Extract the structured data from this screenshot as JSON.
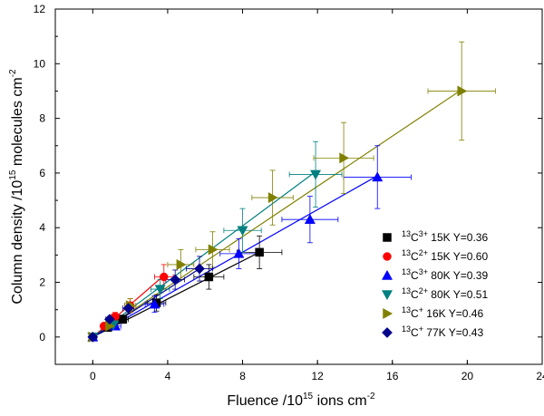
{
  "chart_data": {
    "type": "scatter",
    "xlabel": "Fluence /10",
    "xlabel_exp": "15",
    "xlabel_tail": " ions cm",
    "xlabel_tail_exp": "-2",
    "ylabel": "Column density /10",
    "ylabel_exp": "15",
    "ylabel_tail": " molecules cm",
    "ylabel_tail_exp": "-2",
    "xlim": [
      -2,
      24
    ],
    "ylim": [
      -1,
      12
    ],
    "xticks": [
      0,
      4,
      8,
      12,
      16,
      20,
      24
    ],
    "yticks": [
      0,
      2,
      4,
      6,
      8,
      10,
      12
    ],
    "legend_position": "bottom-right",
    "series": [
      {
        "iso": "13",
        "ion": "C",
        "charge": "3+",
        "tail": " 15K Y=0.36",
        "marker": "square",
        "color": "#000000",
        "points": [
          {
            "x": 0,
            "y": 0,
            "xerr": 0,
            "yerr": 0
          },
          {
            "x": 0.8,
            "y": 0.35,
            "xerr": 0.2,
            "yerr": 0.1
          },
          {
            "x": 1.6,
            "y": 0.65,
            "xerr": 0.3,
            "yerr": 0.15
          },
          {
            "x": 3.4,
            "y": 1.25,
            "xerr": 0.5,
            "yerr": 0.3
          },
          {
            "x": 6.2,
            "y": 2.2,
            "xerr": 0.8,
            "yerr": 0.45
          },
          {
            "x": 8.9,
            "y": 3.1,
            "xerr": 1.2,
            "yerr": 0.6
          }
        ],
        "fit": [
          [
            0,
            0
          ],
          [
            8.9,
            3.1
          ]
        ]
      },
      {
        "iso": "13",
        "ion": "C",
        "charge": "2+",
        "tail": " 15K Y=0.60",
        "marker": "circle",
        "color": "#ff0000",
        "points": [
          {
            "x": 0,
            "y": 0,
            "xerr": 0,
            "yerr": 0
          },
          {
            "x": 0.6,
            "y": 0.4,
            "xerr": 0.15,
            "yerr": 0.1
          },
          {
            "x": 1.2,
            "y": 0.75,
            "xerr": 0.2,
            "yerr": 0.15
          },
          {
            "x": 2.0,
            "y": 1.15,
            "xerr": 0.3,
            "yerr": 0.25
          },
          {
            "x": 3.8,
            "y": 2.2,
            "xerr": 0.5,
            "yerr": 0.45
          }
        ],
        "fit": [
          [
            0,
            0
          ],
          [
            3.8,
            2.25
          ]
        ]
      },
      {
        "iso": "13",
        "ion": "C",
        "charge": "3+",
        "tail": " 80K Y=0.39",
        "marker": "triangle-up",
        "color": "#0000ff",
        "points": [
          {
            "x": 0,
            "y": 0,
            "xerr": 0,
            "yerr": 0
          },
          {
            "x": 1.2,
            "y": 0.4,
            "xerr": 0.3,
            "yerr": 0.1
          },
          {
            "x": 3.3,
            "y": 1.2,
            "xerr": 0.5,
            "yerr": 0.3
          },
          {
            "x": 7.8,
            "y": 3.05,
            "xerr": 1.0,
            "yerr": 0.55
          },
          {
            "x": 11.6,
            "y": 4.3,
            "xerr": 1.5,
            "yerr": 0.85
          },
          {
            "x": 15.2,
            "y": 5.85,
            "xerr": 1.8,
            "yerr": 1.15
          }
        ],
        "fit": [
          [
            0,
            0
          ],
          [
            15.2,
            5.9
          ]
        ]
      },
      {
        "iso": "13",
        "ion": "C",
        "charge": "2+",
        "tail": " 80K Y=0.51",
        "marker": "triangle-down",
        "color": "#008080",
        "points": [
          {
            "x": 0,
            "y": 0,
            "xerr": 0,
            "yerr": 0
          },
          {
            "x": 1.1,
            "y": 0.45,
            "xerr": 0.2,
            "yerr": 0.1
          },
          {
            "x": 3.6,
            "y": 1.75,
            "xerr": 0.5,
            "yerr": 0.35
          },
          {
            "x": 8.0,
            "y": 3.9,
            "xerr": 1.0,
            "yerr": 0.8
          },
          {
            "x": 11.9,
            "y": 5.95,
            "xerr": 1.4,
            "yerr": 1.2
          }
        ],
        "fit": [
          [
            0,
            0
          ],
          [
            11.9,
            6.05
          ]
        ]
      },
      {
        "iso": "13",
        "ion": "C",
        "charge": "+",
        "tail": " 16K Y=0.46",
        "marker": "triangle-right",
        "color": "#808000",
        "points": [
          {
            "x": 0,
            "y": 0,
            "xerr": 0,
            "yerr": 0
          },
          {
            "x": 0.9,
            "y": 0.4,
            "xerr": 0.2,
            "yerr": 0.1
          },
          {
            "x": 2.0,
            "y": 1.15,
            "xerr": 0.3,
            "yerr": 0.25
          },
          {
            "x": 4.7,
            "y": 2.65,
            "xerr": 0.7,
            "yerr": 0.55
          },
          {
            "x": 6.4,
            "y": 3.2,
            "xerr": 0.9,
            "yerr": 0.65
          },
          {
            "x": 9.6,
            "y": 5.1,
            "xerr": 1.1,
            "yerr": 1.0
          },
          {
            "x": 13.4,
            "y": 6.55,
            "xerr": 1.6,
            "yerr": 1.3
          },
          {
            "x": 19.7,
            "y": 9.0,
            "xerr": 1.8,
            "yerr": 1.8
          }
        ],
        "fit": [
          [
            0,
            0
          ],
          [
            19.7,
            9.05
          ]
        ]
      },
      {
        "iso": "13",
        "ion": "C",
        "charge": "+",
        "tail": " 77K Y=0.43",
        "marker": "diamond",
        "color": "#00008b",
        "points": [
          {
            "x": 0,
            "y": 0,
            "xerr": 0,
            "yerr": 0
          },
          {
            "x": 0.9,
            "y": 0.65,
            "xerr": 0.2,
            "yerr": 0.1
          },
          {
            "x": 1.9,
            "y": 1.05,
            "xerr": 0.3,
            "yerr": 0.2
          },
          {
            "x": 4.4,
            "y": 2.1,
            "xerr": 0.5,
            "yerr": 0.35
          },
          {
            "x": 5.7,
            "y": 2.5,
            "xerr": 0.7,
            "yerr": 0.45
          }
        ],
        "fit": [
          [
            0,
            0
          ],
          [
            5.7,
            2.5
          ]
        ]
      }
    ]
  }
}
